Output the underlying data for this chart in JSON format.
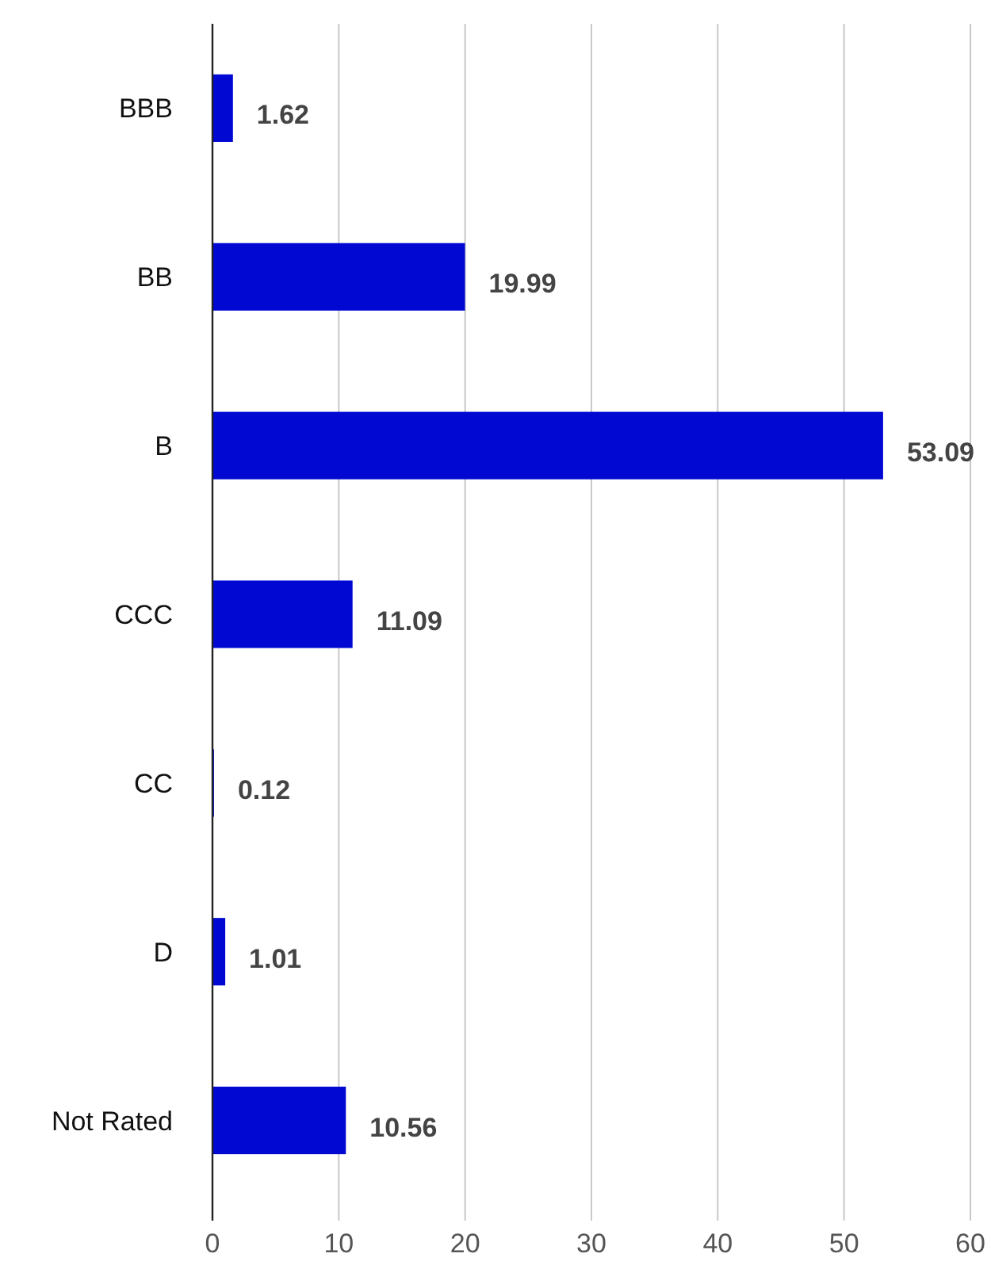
{
  "chart_data": {
    "type": "bar",
    "orientation": "horizontal",
    "categories": [
      "BBB",
      "BB",
      "B",
      "CCC",
      "CC",
      "D",
      "Not Rated"
    ],
    "values": [
      1.62,
      19.99,
      53.09,
      11.09,
      0.12,
      1.01,
      10.56
    ],
    "color": "#0008d2",
    "xlim": [
      0,
      60
    ],
    "xticks": [
      0,
      10,
      20,
      30,
      40,
      50,
      60
    ],
    "grid": "x",
    "data_labels": true
  }
}
